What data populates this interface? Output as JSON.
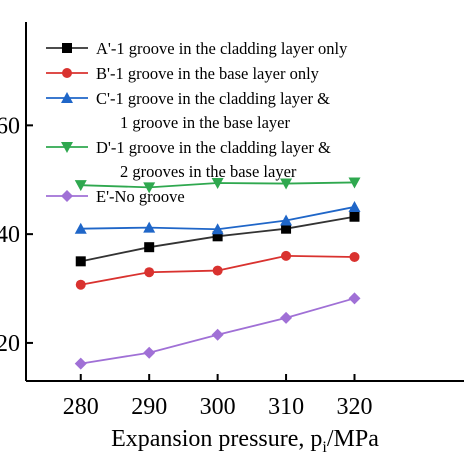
{
  "chart_data": {
    "type": "line",
    "x": [
      280,
      290,
      300,
      310,
      320
    ],
    "xlabel": "Expansion pressure, p",
    "xlabel_sub": "i",
    "xlabel_unit": "/MPa",
    "ylabel": "",
    "xlim": [
      272,
      336
    ],
    "ylim": [
      13,
      79
    ],
    "xticks": [
      280,
      290,
      300,
      310,
      320
    ],
    "yticks": [
      20,
      40,
      60
    ],
    "ytick_labels": [
      "20",
      "40",
      "60"
    ],
    "grid": false,
    "legend_position": "top-left",
    "series": [
      {
        "name": "A'-1 groove in the cladding layer only",
        "legend_lines": [
          "A'-1 groove in the cladding layer only"
        ],
        "color": "#333333",
        "marker": "square",
        "values": [
          35.0,
          37.6,
          39.6,
          41.0,
          43.2
        ]
      },
      {
        "name": "B'-1 groove in the base layer only",
        "legend_lines": [
          "B'-1 groove in the base layer only"
        ],
        "color": "#d9322f",
        "marker": "circle",
        "values": [
          30.7,
          33.0,
          33.3,
          36.0,
          35.8
        ]
      },
      {
        "name": "C'-1 groove in the cladding layer & 1 groove in the base layer",
        "legend_lines": [
          "C'-1 groove in the cladding layer &",
          "1 groove in the base layer"
        ],
        "color": "#1f66c8",
        "marker": "triangle-up",
        "values": [
          41.0,
          41.2,
          40.9,
          42.5,
          45.0
        ]
      },
      {
        "name": "D'-1 groove in the cladding layer & 2 grooves in the base layer",
        "legend_lines": [
          "D'-1 groove in the cladding layer &",
          "2 grooves in the base layer"
        ],
        "color": "#2fa84f",
        "marker": "triangle-down",
        "values": [
          49.0,
          48.6,
          49.4,
          49.3,
          49.5
        ]
      },
      {
        "name": "E'-No groove",
        "legend_lines": [
          "E'-No groove"
        ],
        "color": "#a070d6",
        "marker": "diamond",
        "values": [
          16.2,
          18.2,
          21.5,
          24.6,
          28.2
        ]
      }
    ]
  }
}
